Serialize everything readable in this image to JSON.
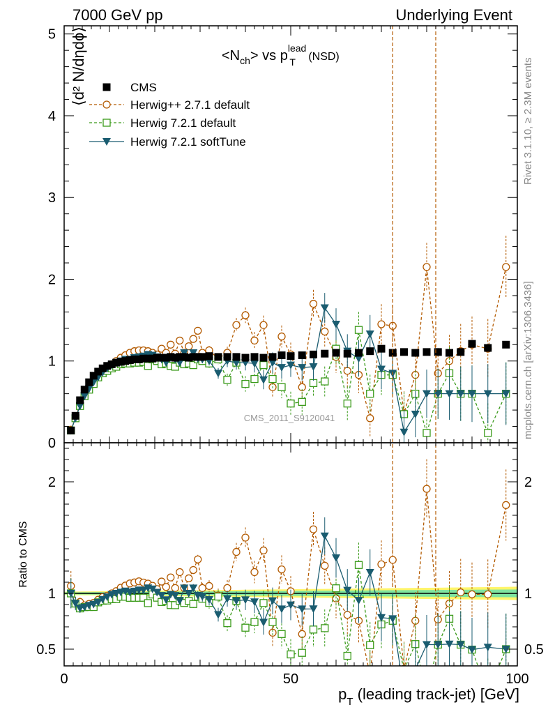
{
  "header": {
    "left": "7000 GeV pp",
    "right": "Underlying Event"
  },
  "plot_title": {
    "main": "<N",
    "sub1": "ch",
    "mid": "> vs p",
    "sup": "lead",
    "sub2": "T",
    "tail": " (NSD)"
  },
  "side_text": {
    "rivet": "Rivet 3.1.10, ≥ 2.3M events",
    "mcplots": "mcplots.cern.ch [arXiv:1306.3436]"
  },
  "watermark": "CMS_2011_S9120041",
  "axes": {
    "ylabel_main": "⟨d² N/dηdϕ⟩",
    "ylabel_ratio": "Ratio to CMS",
    "xlabel": "p_T (leading track-jet) [GeV]",
    "xlabel_p": "p",
    "xlabel_sub": "T",
    "xlabel_rest": " (leading track-jet) [GeV]"
  },
  "chart_data": {
    "type": "line",
    "x_range": [
      0,
      100
    ],
    "y_range_main": [
      0,
      5.1
    ],
    "y_range_ratio": [
      0.35,
      2.35
    ],
    "x_ticks": [
      0,
      50,
      100
    ],
    "y_ticks_main": [
      0,
      1,
      2,
      3,
      4,
      5
    ],
    "y_ticks_ratio": [
      0.5,
      1,
      2
    ],
    "legend": {
      "placement": "top-left"
    },
    "colors": {
      "cms": "#000000",
      "herwigpp": "#b35a00",
      "herwig721": "#3a9a1a",
      "softtune": "#1a5c70",
      "band_inner": "#7fe5a0",
      "band_outer": "#fff56a"
    },
    "series": [
      {
        "name": "CMS",
        "marker": "square-filled",
        "x": [
          1.5,
          2.5,
          3.5,
          4.5,
          5.5,
          6.5,
          7.5,
          8.5,
          9.5,
          10.5,
          11.5,
          12.5,
          13.5,
          14.5,
          15.5,
          16.5,
          17.5,
          18.5,
          19.5,
          20.5,
          21.5,
          22.5,
          23.5,
          24.5,
          25.5,
          26.5,
          27.5,
          28.5,
          29.5,
          30.5,
          32,
          34,
          36,
          38,
          40,
          42,
          44,
          46,
          48,
          50,
          52.5,
          55,
          57.5,
          60,
          62.5,
          65,
          67.5,
          70,
          72.5,
          75,
          77.5,
          80,
          82.5,
          85,
          87.5,
          90,
          93.5,
          97.5
        ],
        "y": [
          0.15,
          0.33,
          0.52,
          0.65,
          0.74,
          0.82,
          0.87,
          0.91,
          0.94,
          0.96,
          0.98,
          0.99,
          1.0,
          1.01,
          1.02,
          1.02,
          1.03,
          1.03,
          1.03,
          1.04,
          1.04,
          1.04,
          1.05,
          1.04,
          1.05,
          1.05,
          1.04,
          1.05,
          1.05,
          1.05,
          1.06,
          1.05,
          1.05,
          1.05,
          1.04,
          1.05,
          1.04,
          1.05,
          1.07,
          1.06,
          1.07,
          1.08,
          1.09,
          1.1,
          1.09,
          1.1,
          1.12,
          1.15,
          1.1,
          1.11,
          1.1,
          1.11,
          1.11,
          1.1,
          1.11,
          1.21,
          1.16,
          1.2
        ]
      },
      {
        "name": "Herwig++ 2.7.1 default",
        "marker": "circle-open",
        "x": [
          1.5,
          2.5,
          3.5,
          4.5,
          5.5,
          6.5,
          7.5,
          8.5,
          9.5,
          10.5,
          11.5,
          12.5,
          13.5,
          14.5,
          15.5,
          16.5,
          17.5,
          18.5,
          19.5,
          20.5,
          21.5,
          22.5,
          23.5,
          24.5,
          25.5,
          26.5,
          27.5,
          28.5,
          29.5,
          30.5,
          32,
          34,
          36,
          38,
          40,
          42,
          44,
          46,
          48,
          50,
          52.5,
          55,
          57.5,
          60,
          62.5,
          65,
          67.5,
          70,
          72.5,
          75,
          77.5,
          80,
          82.5,
          85,
          87.5,
          90,
          93.5,
          97.5
        ],
        "y": [
          0.16,
          0.3,
          0.48,
          0.58,
          0.67,
          0.75,
          0.82,
          0.88,
          0.92,
          0.96,
          1.0,
          1.04,
          1.07,
          1.1,
          1.12,
          1.13,
          1.13,
          1.12,
          1.1,
          1.08,
          1.15,
          1.1,
          1.2,
          1.09,
          1.25,
          1.1,
          1.18,
          1.27,
          1.37,
          1.1,
          1.13,
          1.03,
          1.1,
          1.44,
          1.56,
          1.25,
          1.44,
          0.68,
          1.3,
          1.08,
          0.68,
          1.7,
          1.36,
          1.05,
          0.88,
          0.83,
          0.3,
          1.45,
          1.43,
          0.36,
          0.83,
          2.15,
          0.85,
          1.0,
          1.12,
          1.2,
          1.15,
          2.15
        ],
        "xerr_dashed": true
      },
      {
        "name": "Herwig 7.2.1 default",
        "marker": "square-open",
        "x": [
          1.5,
          2.5,
          3.5,
          4.5,
          5.5,
          6.5,
          7.5,
          8.5,
          9.5,
          10.5,
          11.5,
          12.5,
          13.5,
          14.5,
          15.5,
          16.5,
          17.5,
          18.5,
          19.5,
          20.5,
          21.5,
          22.5,
          23.5,
          24.5,
          25.5,
          26.5,
          27.5,
          28.5,
          29.5,
          30.5,
          32,
          34,
          36,
          38,
          40,
          42,
          44,
          46,
          48,
          50,
          52.5,
          55,
          57.5,
          60,
          62.5,
          65,
          67.5,
          70,
          72.5,
          75,
          77.5,
          80,
          82.5,
          85,
          87.5,
          90,
          93.5,
          97.5
        ],
        "y": [
          0.15,
          0.3,
          0.45,
          0.57,
          0.65,
          0.72,
          0.8,
          0.85,
          0.88,
          0.91,
          0.93,
          0.96,
          0.97,
          0.97,
          0.98,
          0.98,
          0.99,
          0.94,
          1.02,
          1.0,
          0.96,
          0.97,
          0.94,
          0.93,
          0.98,
          0.96,
          0.97,
          0.95,
          1.02,
          1.0,
          0.97,
          1.02,
          0.77,
          0.98,
          0.72,
          0.78,
          0.95,
          0.78,
          0.68,
          0.48,
          0.5,
          0.73,
          0.75,
          1.15,
          0.48,
          1.38,
          0.6,
          0.83,
          0.83,
          0.35,
          0.6,
          0.12,
          0.6,
          0.85,
          0.6,
          0.6,
          0.12,
          0.6
        ],
        "xerr_dashed": true
      },
      {
        "name": "Herwig 7.2.1 softTune",
        "marker": "triangle-down-filled",
        "x": [
          1.5,
          2.5,
          3.5,
          4.5,
          5.5,
          6.5,
          7.5,
          8.5,
          9.5,
          10.5,
          11.5,
          12.5,
          13.5,
          14.5,
          15.5,
          16.5,
          17.5,
          18.5,
          19.5,
          20.5,
          21.5,
          22.5,
          23.5,
          24.5,
          25.5,
          26.5,
          27.5,
          28.5,
          29.5,
          30.5,
          32,
          34,
          36,
          38,
          40,
          42,
          44,
          46,
          48,
          50,
          52.5,
          55,
          57.5,
          60,
          62.5,
          65,
          67.5,
          70,
          72.5,
          75,
          77.5,
          80,
          82.5,
          85,
          87.5,
          90,
          93.5,
          97.5
        ],
        "y": [
          0.15,
          0.3,
          0.45,
          0.57,
          0.66,
          0.74,
          0.8,
          0.86,
          0.91,
          0.95,
          0.98,
          1.0,
          1.02,
          1.02,
          1.04,
          1.05,
          1.06,
          1.08,
          1.07,
          1.05,
          1.02,
          0.98,
          1.04,
          1.02,
          0.98,
          1.1,
          1.04,
          1.1,
          1.03,
          1.02,
          1.0,
          0.85,
          1.0,
          0.98,
          0.98,
          0.97,
          0.77,
          0.98,
          0.92,
          0.95,
          0.92,
          0.93,
          1.65,
          1.45,
          1.12,
          1.03,
          1.33,
          0.9,
          0.85,
          0.13,
          0.35,
          0.6,
          0.6,
          0.6,
          0.6,
          0.6,
          0.6,
          0.6
        ]
      }
    ]
  }
}
